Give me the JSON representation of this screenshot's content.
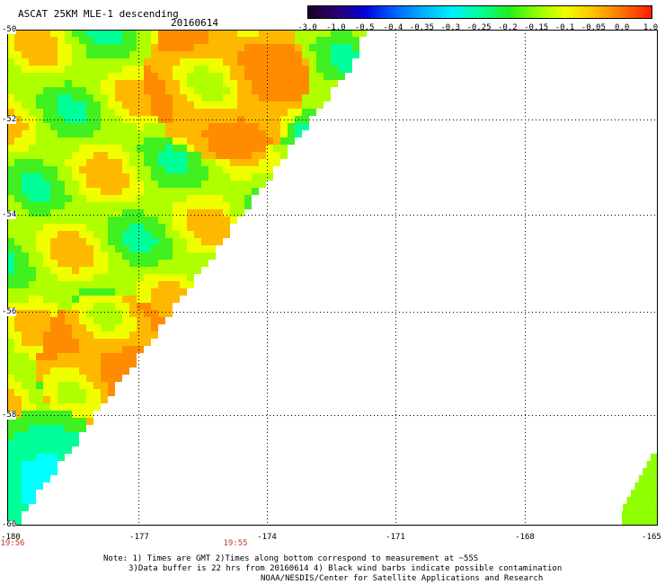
{
  "header": {
    "title": "ASCAT 25KM MLE-1 descending",
    "date": "20160614"
  },
  "colorbar": {
    "ticks": [
      "-3.0",
      "-1.0",
      "-0.5",
      "-0.4",
      "-0.35",
      "-0.3",
      "-0.25",
      "-0.2",
      "-0.15",
      "-0.1",
      "-0.05",
      "0.0",
      "1.0"
    ],
    "colors": [
      "#1a0026",
      "#2a0070",
      "#0000e0",
      "#0060ff",
      "#00b0ff",
      "#00f0ff",
      "#00ff99",
      "#20f020",
      "#90ff00",
      "#f0ff00",
      "#ffc000",
      "#ff7000",
      "#ff1a00"
    ]
  },
  "map": {
    "lat_labels": [
      "-50",
      "-52",
      "-54",
      "-56",
      "-58",
      "-60"
    ],
    "lon_labels": [
      "-180",
      "-177",
      "-174",
      "-171",
      "-168",
      "-165"
    ],
    "time_labels": [
      "19:56",
      "19:55"
    ],
    "swath_description": "MLE values mostly -0.15 to 0.0 with a low region (about -0.3) near -59S -179W"
  },
  "notes": {
    "line1": "Note: 1) Times are GMT 2)Times along bottom correspond to measurement at ~55S",
    "line2": "3)Data buffer is 22 hrs from 20160614 4) Black wind barbs indicate possible contamination",
    "line3": "NOAA/NESDIS/Center for Satellite Applications and Research"
  }
}
